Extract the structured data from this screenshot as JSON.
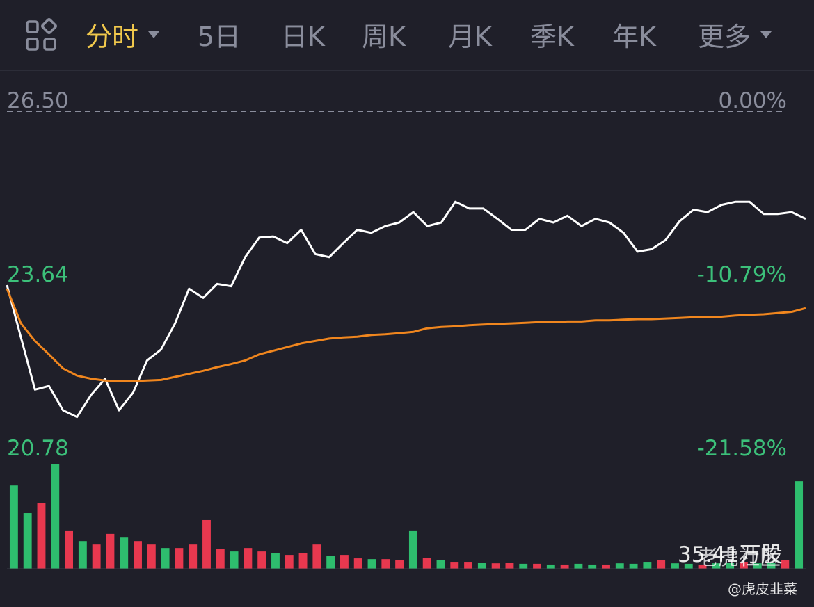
{
  "tabs": [
    "分时",
    "5日",
    "日K",
    "周K",
    "月K",
    "季K",
    "年K",
    "更多"
  ],
  "active_tab": 0,
  "chart_data": {
    "type": "line",
    "ylim": [
      20.78,
      26.5
    ],
    "yticks": [
      {
        "value": 26.5,
        "label": "26.50"
      },
      {
        "value": 23.64,
        "label": "23.64"
      },
      {
        "value": 20.78,
        "label": "20.78"
      }
    ],
    "y2lim": [
      -21.58,
      0
    ],
    "y2ticks": [
      {
        "value": 0,
        "label": "0.00%"
      },
      {
        "value": -10.79,
        "label": "-10.79%"
      },
      {
        "value": -21.58,
        "label": "-21.58%"
      }
    ],
    "series": [
      {
        "color": "#ffffff",
        "values": [
          23.64,
          22.78,
          21.92,
          21.98,
          21.58,
          21.47,
          21.83,
          22.1,
          21.58,
          21.87,
          22.4,
          22.58,
          23.01,
          23.58,
          23.43,
          23.66,
          23.62,
          24.1,
          24.42,
          24.44,
          24.33,
          24.55,
          24.15,
          24.1,
          24.33,
          24.55,
          24.5,
          24.61,
          24.67,
          24.84,
          24.61,
          24.67,
          25.01,
          24.9,
          24.9,
          24.73,
          24.55,
          24.55,
          24.73,
          24.67,
          24.78,
          24.61,
          24.73,
          24.67,
          24.5,
          24.19,
          24.23,
          24.38,
          24.69,
          24.88,
          24.84,
          24.96,
          25.01,
          25.01,
          24.81,
          24.81,
          24.84,
          24.73
        ]
      },
      {
        "color": "#f0861e",
        "values": [
          23.58,
          23.01,
          22.72,
          22.5,
          22.27,
          22.15,
          22.1,
          22.07,
          22.06,
          22.06,
          22.07,
          22.08,
          22.13,
          22.18,
          22.23,
          22.29,
          22.34,
          22.4,
          22.5,
          22.56,
          22.62,
          22.68,
          22.72,
          22.76,
          22.78,
          22.79,
          22.82,
          22.83,
          22.85,
          22.87,
          22.93,
          22.95,
          22.96,
          22.98,
          22.99,
          23.0,
          23.01,
          23.02,
          23.03,
          23.03,
          23.04,
          23.04,
          23.06,
          23.06,
          23.07,
          23.08,
          23.08,
          23.09,
          23.1,
          23.11,
          23.11,
          23.12,
          23.14,
          23.15,
          23.16,
          23.18,
          23.2,
          23.26
        ]
      }
    ],
    "volume": {
      "label": "35.41万股",
      "values": [
        33.7,
        22.5,
        26.7,
        42.2,
        15.5,
        11.2,
        9.8,
        14.1,
        12.6,
        11.2,
        9.8,
        8.4,
        8.4,
        9.8,
        19.7,
        7.9,
        7.0,
        8.4,
        7.0,
        6.2,
        5.6,
        6.2,
        9.8,
        5.1,
        5.6,
        4.2,
        3.9,
        3.9,
        3.4,
        15.5,
        4.5,
        3.4,
        2.8,
        2.8,
        2.5,
        2.2,
        2.5,
        2.0,
        2.0,
        1.7,
        1.7,
        2.0,
        1.7,
        1.7,
        2.2,
        2.0,
        2.8,
        3.4,
        2.2,
        2.0,
        1.7,
        2.2,
        2.5,
        2.8,
        2.2,
        2.5,
        3.4,
        35.41
      ],
      "colors": [
        "#2ebd6e",
        "#2ebd6e",
        "#e8384f",
        "#2ebd6e",
        "#e8384f",
        "#2ebd6e",
        "#e8384f",
        "#e8384f",
        "#2ebd6e",
        "#e8384f",
        "#e8384f",
        "#2ebd6e",
        "#e8384f",
        "#e8384f",
        "#e8384f",
        "#e8384f",
        "#2ebd6e",
        "#e8384f",
        "#e8384f",
        "#2ebd6e",
        "#e8384f",
        "#e8384f",
        "#e8384f",
        "#2ebd6e",
        "#e8384f",
        "#e8384f",
        "#2ebd6e",
        "#e8384f",
        "#e8384f",
        "#2ebd6e",
        "#e8384f",
        "#2ebd6e",
        "#e8384f",
        "#e8384f",
        "#2ebd6e",
        "#e8384f",
        "#e8384f",
        "#2ebd6e",
        "#e8384f",
        "#2ebd6e",
        "#e8384f",
        "#2ebd6e",
        "#2ebd6e",
        "#e8384f",
        "#2ebd6e",
        "#2ebd6e",
        "#2ebd6e",
        "#e8384f",
        "#2ebd6e",
        "#2ebd6e",
        "#e8384f",
        "#2ebd6e",
        "#2ebd6e",
        "#e8384f",
        "#2ebd6e",
        "#2ebd6e",
        "#e8384f",
        "#2ebd6e"
      ]
    }
  },
  "watermark": "老虎社区",
  "credit": "@虎皮韭菜"
}
